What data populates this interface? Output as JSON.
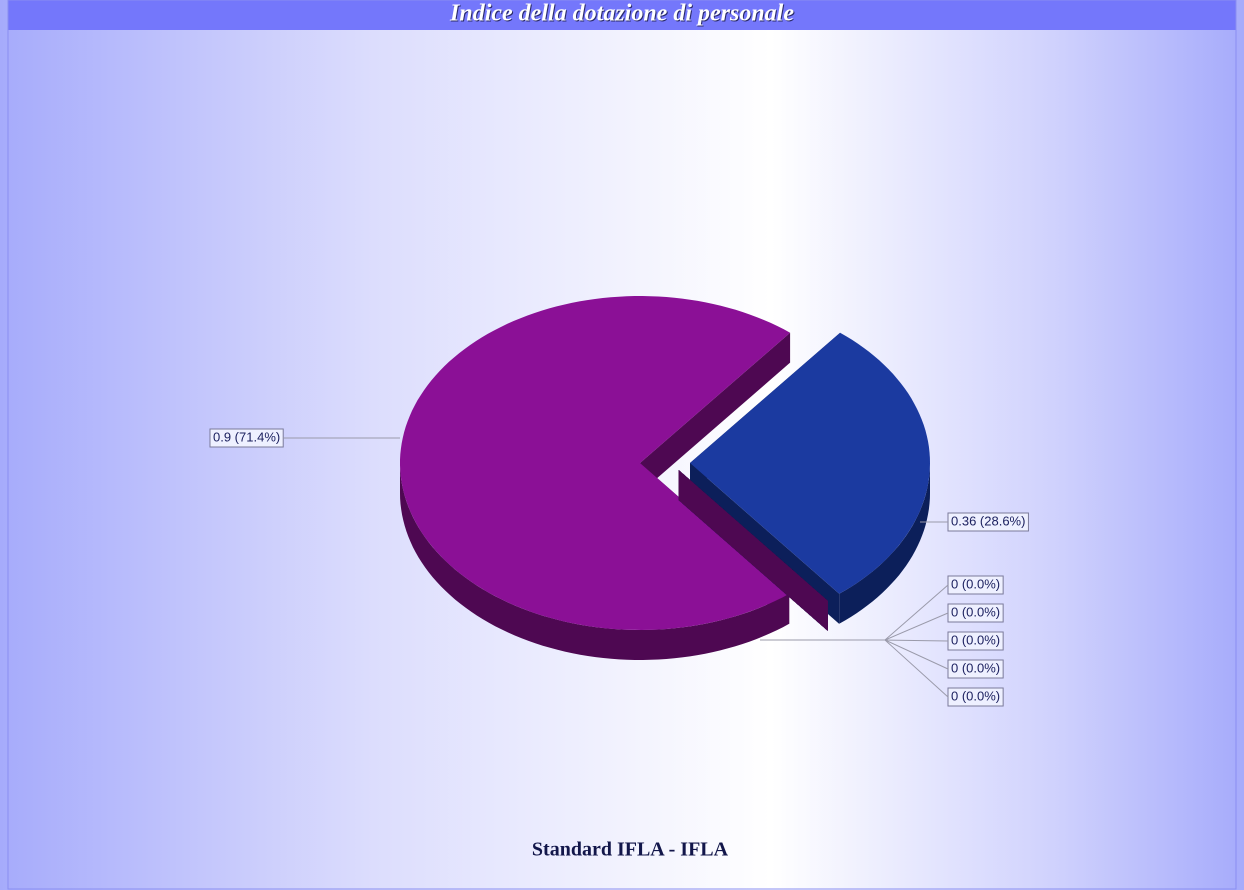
{
  "chart_data": {
    "type": "pie",
    "title": "Indice della dotazione di personale",
    "xlabel": "Standard IFLA - IFLA",
    "values": [
      0.9,
      0.36,
      0,
      0,
      0,
      0,
      0
    ],
    "value_labels": [
      "0.9 (71.4%)",
      "0.36 (28.6%)",
      "0 (0.0%)",
      "0 (0.0%)",
      "0 (0.0%)",
      "0 (0.0%)",
      "0 (0.0%)"
    ],
    "colors": [
      "#8b1096",
      "#1b3aa0"
    ],
    "side_colors": [
      "#4e0852",
      "#0c1f5a"
    ]
  }
}
